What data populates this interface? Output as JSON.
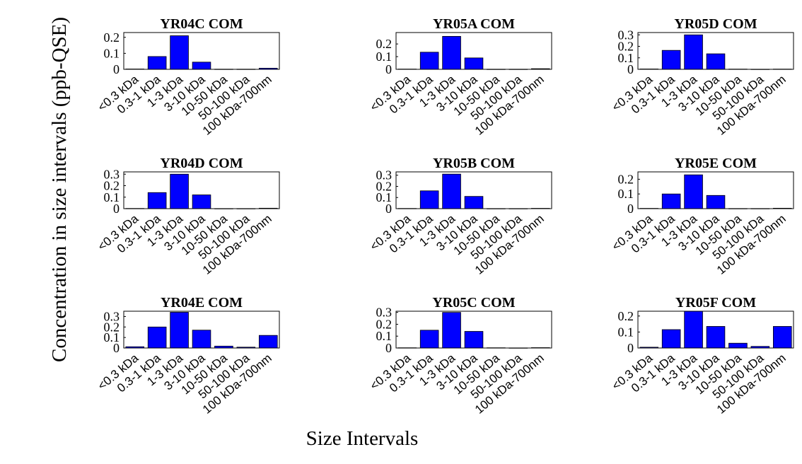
{
  "figure": {
    "ylabel": "Concentration in size intervals (ppb-QSE)",
    "xlabel": "Size Intervals",
    "bar_color": "#0000ff",
    "edge_color": "#000000"
  },
  "chart_data": [
    {
      "type": "bar",
      "title": "YR04C COM",
      "categories": [
        "<0.3 kDa",
        "0.3-1 kDa",
        "1-3 kDa",
        "3-10 kDa",
        "10-50 kDa",
        "50-100 kDa",
        "100 kDa-700nm"
      ],
      "values": [
        0.002,
        0.08,
        0.21,
        0.045,
        0.001,
        0.001,
        0.007
      ],
      "ylim": [
        0,
        0.23
      ],
      "yticks": [
        0,
        0.1,
        0.2
      ],
      "ytick_labels": [
        "0",
        "0.1",
        "0.2"
      ]
    },
    {
      "type": "bar",
      "title": "YR05A COM",
      "categories": [
        "<0.3 kDa",
        "0.3-1 kDa",
        "1-3 kDa",
        "3-10 kDa",
        "10-50 kDa",
        "50-100 kDa",
        "100 kDa-700nm"
      ],
      "values": [
        0.002,
        0.135,
        0.26,
        0.09,
        0.001,
        0.001,
        0.005
      ],
      "ylim": [
        0,
        0.29
      ],
      "yticks": [
        0,
        0.1,
        0.2
      ],
      "ytick_labels": [
        "0",
        "0.1",
        "0.2"
      ]
    },
    {
      "type": "bar",
      "title": "YR05D COM",
      "categories": [
        "<0.3 kDa",
        "0.3-1 kDa",
        "1-3 kDa",
        "3-10 kDa",
        "10-50 kDa",
        "50-100 kDa",
        "100 kDa-700nm"
      ],
      "values": [
        0.003,
        0.165,
        0.3,
        0.135,
        0.002,
        0.001,
        0.002
      ],
      "ylim": [
        0,
        0.32
      ],
      "yticks": [
        0,
        0.1,
        0.2,
        0.3
      ],
      "ytick_labels": [
        "0",
        "0.1",
        "0.2",
        "0.3"
      ]
    },
    {
      "type": "bar",
      "title": "YR04D COM",
      "categories": [
        "<0.3 kDa",
        "0.3-1 kDa",
        "1-3 kDa",
        "3-10 kDa",
        "10-50 kDa",
        "50-100 kDa",
        "100 kDa-700nm"
      ],
      "values": [
        0.002,
        0.14,
        0.3,
        0.12,
        0.001,
        0.001,
        0.004
      ],
      "ylim": [
        0,
        0.32
      ],
      "yticks": [
        0,
        0.1,
        0.2,
        0.3
      ],
      "ytick_labels": [
        "0",
        "0.1",
        "0.2",
        "0.3"
      ]
    },
    {
      "type": "bar",
      "title": "YR05B COM",
      "categories": [
        "<0.3 kDa",
        "0.3-1 kDa",
        "1-3 kDa",
        "3-10 kDa",
        "10-50 kDa",
        "50-100 kDa",
        "100 kDa-700nm"
      ],
      "values": [
        0.002,
        0.16,
        0.31,
        0.11,
        0.001,
        0.001,
        0.003
      ],
      "ylim": [
        0,
        0.33
      ],
      "yticks": [
        0,
        0.1,
        0.2,
        0.3
      ],
      "ytick_labels": [
        "0",
        "0.1",
        "0.2",
        "0.3"
      ]
    },
    {
      "type": "bar",
      "title": "YR05E COM",
      "categories": [
        "<0.3 kDa",
        "0.3-1 kDa",
        "1-3 kDa",
        "3-10 kDa",
        "10-50 kDa",
        "50-100 kDa",
        "100 kDa-700nm"
      ],
      "values": [
        0.002,
        0.1,
        0.23,
        0.09,
        0.001,
        0.001,
        0.003
      ],
      "ylim": [
        0,
        0.25
      ],
      "yticks": [
        0,
        0.1,
        0.2
      ],
      "ytick_labels": [
        "0",
        "0.1",
        "0.2"
      ]
    },
    {
      "type": "bar",
      "title": "YR04E COM",
      "categories": [
        "<0.3 kDa",
        "0.3-1 kDa",
        "1-3 kDa",
        "3-10 kDa",
        "10-50 kDa",
        "50-100 kDa",
        "100 kDa-700nm"
      ],
      "values": [
        0.012,
        0.2,
        0.34,
        0.17,
        0.018,
        0.008,
        0.12
      ],
      "ylim": [
        0,
        0.35
      ],
      "yticks": [
        0,
        0.1,
        0.2,
        0.3
      ],
      "ytick_labels": [
        "0",
        "0.1",
        "0.2",
        "0.3"
      ]
    },
    {
      "type": "bar",
      "title": "YR05C COM",
      "categories": [
        "<0.3 kDa",
        "0.3-1 kDa",
        "1-3 kDa",
        "3-10 kDa",
        "10-50 kDa",
        "50-100 kDa",
        "100 kDa-700nm"
      ],
      "values": [
        0.002,
        0.15,
        0.3,
        0.14,
        0.002,
        0.001,
        0.003
      ],
      "ylim": [
        0,
        0.31
      ],
      "yticks": [
        0,
        0.1,
        0.2,
        0.3
      ],
      "ytick_labels": [
        "0",
        "0.1",
        "0.2",
        "0.3"
      ]
    },
    {
      "type": "bar",
      "title": "YR05F COM",
      "categories": [
        "<0.3 kDa",
        "0.3-1 kDa",
        "1-3 kDa",
        "3-10 kDa",
        "10-50 kDa",
        "50-100 kDa",
        "100 kDa-700nm"
      ],
      "values": [
        0.005,
        0.115,
        0.23,
        0.135,
        0.03,
        0.01,
        0.135
      ],
      "ylim": [
        0,
        0.23
      ],
      "yticks": [
        0,
        0.1,
        0.2
      ],
      "ytick_labels": [
        "0",
        "0.1",
        "0.2"
      ]
    }
  ]
}
